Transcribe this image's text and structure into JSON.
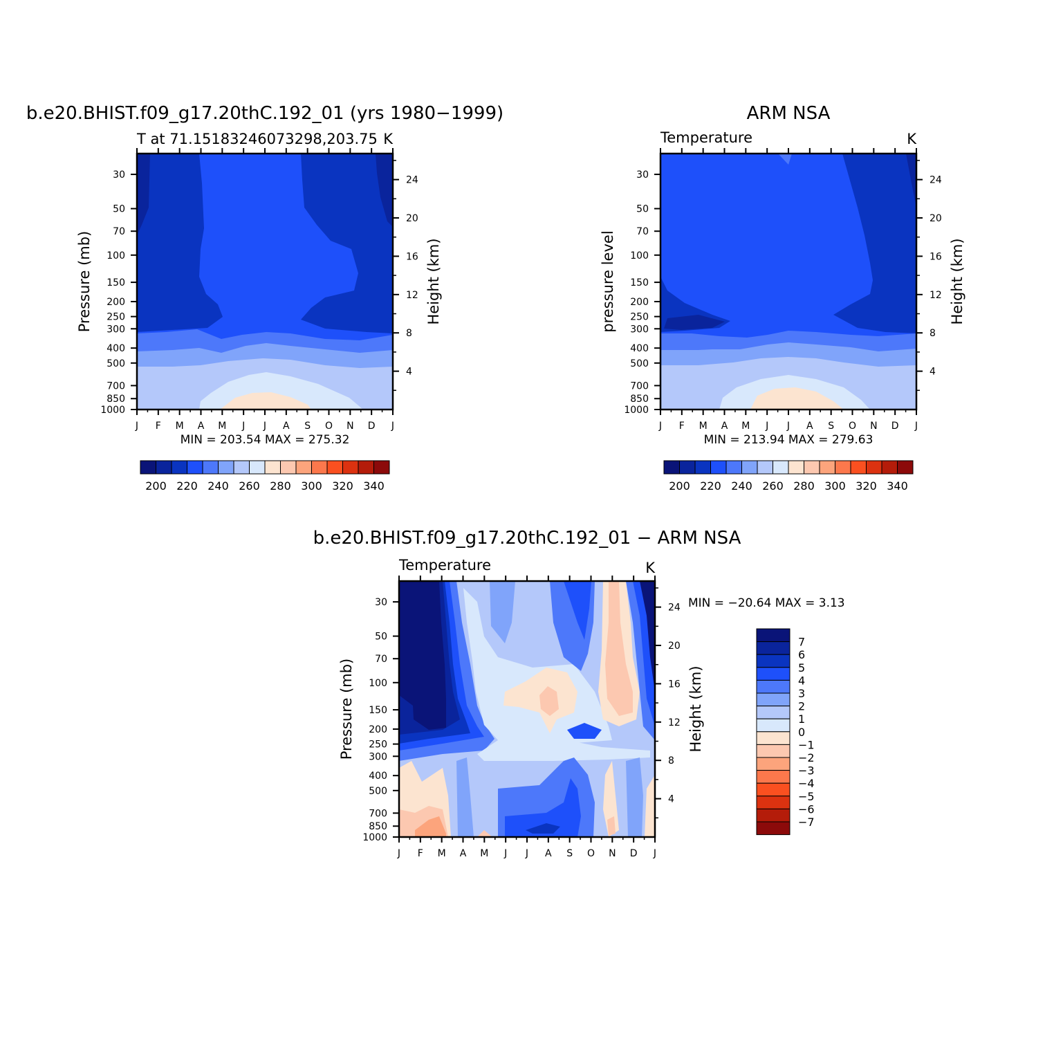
{
  "chart_data": [
    {
      "type": "heatmap",
      "title": "b.e20.BHIST.f09_g17.20thC.192_01 (yrs 1980−1999)",
      "subtitle_left": "T at 71.15183246073298,203.75",
      "units": "K",
      "ylabel": "Pressure (mb)",
      "ylabel_right": "Height (km)",
      "x_ticks": [
        "J",
        "F",
        "M",
        "A",
        "M",
        "J",
        "J",
        "A",
        "S",
        "O",
        "N",
        "D",
        "J"
      ],
      "p_ticks": [
        "30",
        "50",
        "70",
        "100",
        "150",
        "200",
        "250",
        "300",
        "400",
        "500",
        "700",
        "850",
        "1000"
      ],
      "p_values": [
        30,
        50,
        70,
        100,
        150,
        200,
        250,
        300,
        400,
        500,
        700,
        850,
        1000
      ],
      "z_ticks": [
        "24",
        "20",
        "16",
        "12",
        "8",
        "4"
      ],
      "z_values": [
        24,
        20,
        16,
        12,
        8,
        4
      ],
      "ylim": [
        1000,
        22
      ],
      "min_max_text": "MIN = 203.54 MAX = 275.32",
      "colorbar": {
        "colors": [
          "#0a1478",
          "#0a249c",
          "#0a34c0",
          "#1e50fa",
          "#4d78fa",
          "#80a4fa",
          "#b4c8fa",
          "#d8e8fc",
          "#fce4d0",
          "#fcc8b0",
          "#fca47c",
          "#fc784c",
          "#fa5020",
          "#dc3210",
          "#b41c0a",
          "#8c0a0a"
        ],
        "labels": [
          "200",
          "220",
          "240",
          "260",
          "280",
          "300",
          "320",
          "340"
        ]
      },
      "levels": [
        195,
        200,
        205,
        210,
        215,
        220,
        225,
        230,
        235,
        240,
        245,
        250,
        255,
        260,
        265,
        270,
        275
      ],
      "regions": [
        {
          "level": 235,
          "color": "#1e50fa"
        },
        {
          "level": 225,
          "color": "#0a34c0"
        },
        {
          "level": 215,
          "color": "#0a249c"
        },
        {
          "level": 245,
          "color": "#4d78fa"
        },
        {
          "level": 255,
          "color": "#80a4fa"
        },
        {
          "level": 265,
          "color": "#b4c8fa"
        },
        {
          "level": 270,
          "color": "#d8e8fc"
        },
        {
          "level": 272,
          "color": "#fce4d0"
        }
      ]
    },
    {
      "type": "heatmap",
      "title": "ARM NSA",
      "subtitle_left": "Temperature",
      "units": "K",
      "ylabel": "pressure level",
      "ylabel_right": "Height (km)",
      "x_ticks": [
        "J",
        "F",
        "M",
        "A",
        "M",
        "J",
        "J",
        "A",
        "S",
        "O",
        "N",
        "D",
        "J"
      ],
      "p_ticks": [
        "30",
        "50",
        "70",
        "100",
        "150",
        "200",
        "250",
        "300",
        "400",
        "500",
        "700",
        "850",
        "1000"
      ],
      "p_values": [
        30,
        50,
        70,
        100,
        150,
        200,
        250,
        300,
        400,
        500,
        700,
        850,
        1000
      ],
      "z_ticks": [
        "24",
        "20",
        "16",
        "12",
        "8",
        "4"
      ],
      "z_values": [
        24,
        20,
        16,
        12,
        8,
        4
      ],
      "ylim": [
        1000,
        22
      ],
      "min_max_text": "MIN = 213.94 MAX = 279.63",
      "colorbar": {
        "colors": [
          "#0a1478",
          "#0a249c",
          "#0a34c0",
          "#1e50fa",
          "#4d78fa",
          "#80a4fa",
          "#b4c8fa",
          "#d8e8fc",
          "#fce4d0",
          "#fcc8b0",
          "#fca47c",
          "#fc784c",
          "#fa5020",
          "#dc3210",
          "#b41c0a",
          "#8c0a0a"
        ],
        "labels": [
          "200",
          "220",
          "240",
          "260",
          "280",
          "300",
          "320",
          "340"
        ]
      }
    },
    {
      "type": "heatmap",
      "title": "b.e20.BHIST.f09_g17.20thC.192_01 − ARM NSA",
      "subtitle_left": "Temperature",
      "units": "K",
      "ylabel": "Pressure (mb)",
      "ylabel_right": "Height (km)",
      "x_ticks": [
        "J",
        "F",
        "M",
        "A",
        "M",
        "J",
        "J",
        "A",
        "S",
        "O",
        "N",
        "D",
        "J"
      ],
      "p_ticks": [
        "30",
        "50",
        "70",
        "100",
        "150",
        "200",
        "250",
        "300",
        "400",
        "500",
        "700",
        "850",
        "1000"
      ],
      "p_values": [
        30,
        50,
        70,
        100,
        150,
        200,
        250,
        300,
        400,
        500,
        700,
        850,
        1000
      ],
      "z_ticks": [
        "24",
        "20",
        "16",
        "12",
        "8",
        "4"
      ],
      "z_values": [
        24,
        20,
        16,
        12,
        8,
        4
      ],
      "ylim": [
        1000,
        22
      ],
      "min_max_text": "MIN = −20.64 MAX =    3.13",
      "colorbar": {
        "colors": [
          "#0a1478",
          "#0a249c",
          "#0a34c0",
          "#1e50fa",
          "#4d78fa",
          "#80a4fa",
          "#b4c8fa",
          "#d8e8fc",
          "#fce4d0",
          "#fcc8b0",
          "#fca47c",
          "#fc784c",
          "#fa5020",
          "#dc3210",
          "#b41c0a",
          "#8c0a0a"
        ],
        "labels": [
          "7",
          "6",
          "5",
          "4",
          "3",
          "2",
          "1",
          "0",
          "−1",
          "−2",
          "−3",
          "−4",
          "−5",
          "−6",
          "−7"
        ]
      }
    }
  ]
}
